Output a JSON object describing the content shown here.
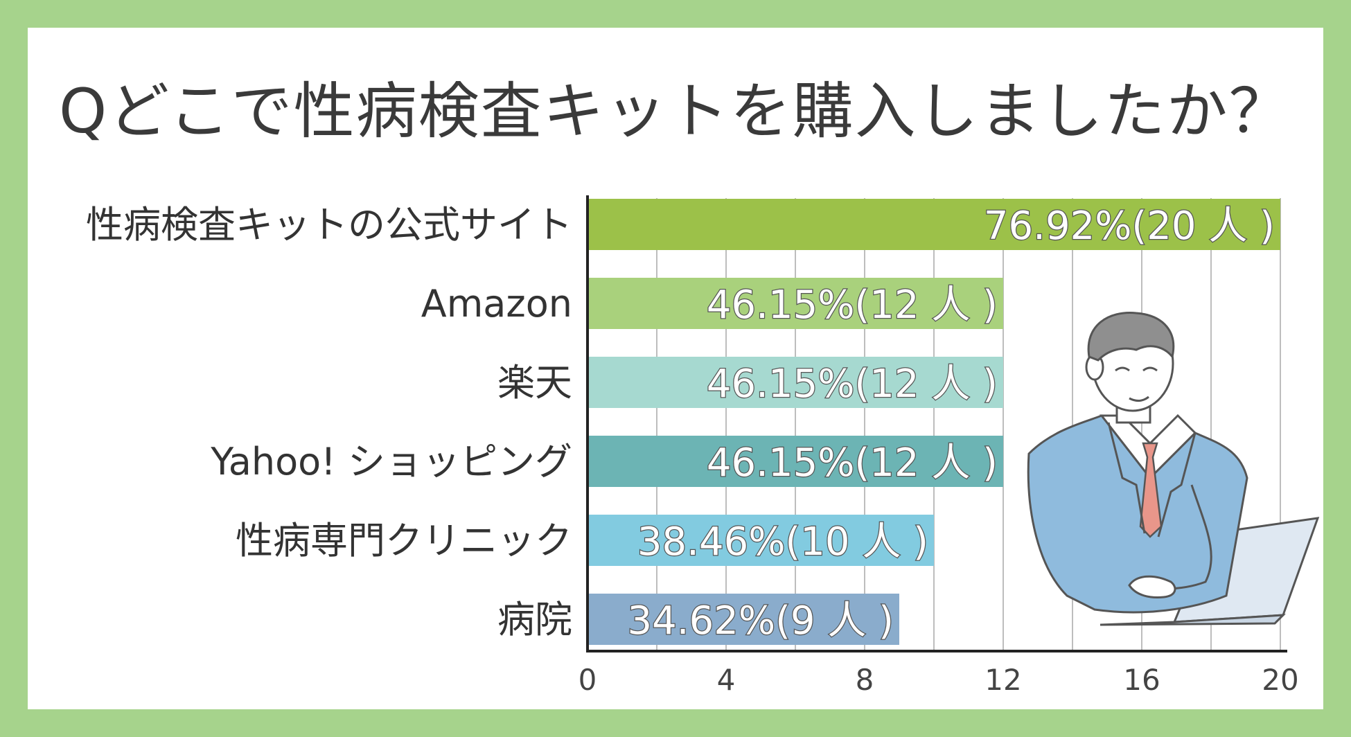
{
  "title": "Qどこで性病検査キットを購入しましたか？",
  "chart_data": {
    "type": "bar",
    "orientation": "horizontal",
    "title": "Qどこで性病検査キットを購入しましたか？",
    "xlim": [
      0,
      20
    ],
    "xticks": [
      0,
      4,
      8,
      12,
      16,
      20
    ],
    "grid": true,
    "categories": [
      "性病検査キットの公式サイト",
      "Amazon",
      "楽天",
      "Yahoo! ショッピング",
      "性病専門クリニック",
      "病院"
    ],
    "values": [
      20,
      12,
      12,
      12,
      10,
      9
    ],
    "data_labels": [
      "76.92%(20 人 )",
      "46.15%(12 人 )",
      "46.15%(12 人 )",
      "46.15%(12 人 )",
      "38.46%(10 人 )",
      "34.62%(9 人 )"
    ],
    "colors": [
      "#9cc149",
      "#a9d17c",
      "#a6d9d0",
      "#6cb4b4",
      "#82cbe0",
      "#8aaccc"
    ]
  }
}
